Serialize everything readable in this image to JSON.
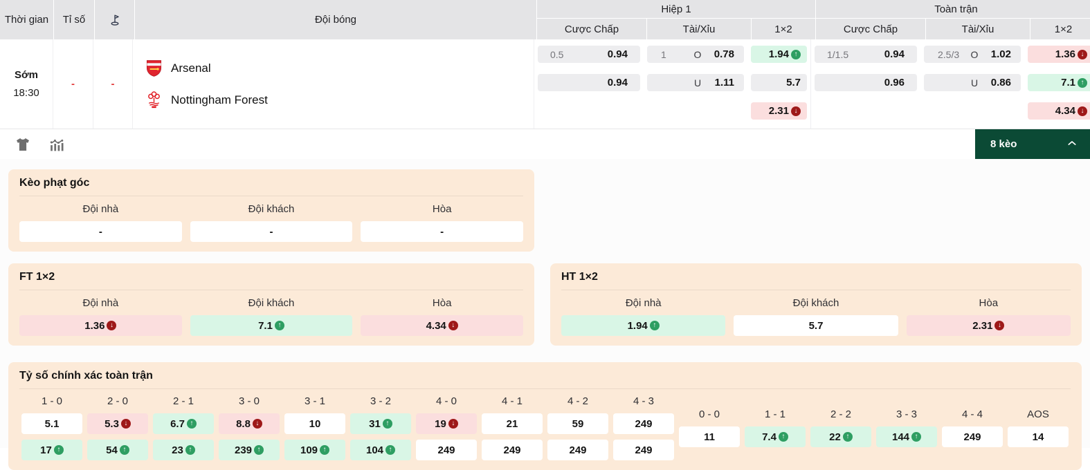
{
  "table": {
    "header": {
      "time": "Thời gian",
      "score": "Tỉ số",
      "team": "Đội bóng",
      "half1": "Hiệp 1",
      "fulltime": "Toàn trận",
      "handicap": "Cược Chấp",
      "over_under": "Tài/Xỉu",
      "one_x_two": "1×2"
    },
    "match": {
      "time_label": "Sớm",
      "time": "18:30",
      "score": "-",
      "corners": "-",
      "home_team": "Arsenal",
      "away_team": "Nottingham Forest",
      "h1": {
        "hcap_line": "0.5",
        "hcap_home": "0.94",
        "hcap_away": "0.94",
        "ou_line": "1",
        "over_label": "O",
        "over": "0.78",
        "under_label": "U",
        "under": "1.11",
        "one": {
          "v": "1.94",
          "t": "up",
          "bg": "green"
        },
        "two": {
          "v": "5.7",
          "t": "",
          "bg": "gray"
        },
        "draw": {
          "v": "2.31",
          "t": "down",
          "bg": "pink"
        }
      },
      "ft": {
        "hcap_line": "1/1.5",
        "hcap_home": "0.94",
        "hcap_away": "0.96",
        "ou_line": "2.5/3",
        "over_label": "O",
        "over": "1.02",
        "under_label": "U",
        "under": "0.86",
        "one": {
          "v": "1.36",
          "t": "down",
          "bg": "pink"
        },
        "two": {
          "v": "7.1",
          "t": "up",
          "bg": "green"
        },
        "draw": {
          "v": "4.34",
          "t": "down",
          "bg": "pink"
        }
      }
    }
  },
  "toolbar": {
    "bets_button": "8 kèo"
  },
  "colors": {
    "accent_green_dark": "#0b4a35",
    "cell_green": "#d9f6e6",
    "cell_pink": "#fbdede",
    "panel_peach": "#fcead8",
    "arrow_up": "#2e9e62",
    "arrow_down": "#9e1919"
  },
  "panels": {
    "corner": {
      "title": "Kèo phạt góc",
      "columns": [
        {
          "label": "Đội nhà",
          "cell": {
            "v": "-",
            "t": "",
            "bg": "white"
          }
        },
        {
          "label": "Đội khách",
          "cell": {
            "v": "-",
            "t": "",
            "bg": "white"
          }
        },
        {
          "label": "Hòa",
          "cell": {
            "v": "-",
            "t": "",
            "bg": "white"
          }
        }
      ]
    },
    "ft1x2": {
      "title": "FT 1×2",
      "columns": [
        {
          "label": "Đội nhà",
          "cell": {
            "v": "1.36",
            "t": "down",
            "bg": "pink"
          }
        },
        {
          "label": "Đội khách",
          "cell": {
            "v": "7.1",
            "t": "up",
            "bg": "green"
          }
        },
        {
          "label": "Hòa",
          "cell": {
            "v": "4.34",
            "t": "down",
            "bg": "pink"
          }
        }
      ]
    },
    "ht1x2": {
      "title": "HT 1×2",
      "columns": [
        {
          "label": "Đội nhà",
          "cell": {
            "v": "1.94",
            "t": "up",
            "bg": "green"
          }
        },
        {
          "label": "Đội khách",
          "cell": {
            "v": "5.7",
            "t": "",
            "bg": "white"
          }
        },
        {
          "label": "Hòa",
          "cell": {
            "v": "2.31",
            "t": "down",
            "bg": "pink"
          }
        }
      ]
    },
    "correct_score": {
      "title": "Tỷ số chính xác toàn trận",
      "main": [
        {
          "score": "1 - 0",
          "home": {
            "v": "5.1",
            "t": "",
            "bg": "white"
          },
          "away": {
            "v": "17",
            "t": "up",
            "bg": "green"
          }
        },
        {
          "score": "2 - 0",
          "home": {
            "v": "5.3",
            "t": "down",
            "bg": "pink"
          },
          "away": {
            "v": "54",
            "t": "up",
            "bg": "green"
          }
        },
        {
          "score": "2 - 1",
          "home": {
            "v": "6.7",
            "t": "up",
            "bg": "green"
          },
          "away": {
            "v": "23",
            "t": "up",
            "bg": "green"
          }
        },
        {
          "score": "3 - 0",
          "home": {
            "v": "8.8",
            "t": "down",
            "bg": "pink"
          },
          "away": {
            "v": "239",
            "t": "up",
            "bg": "green"
          }
        },
        {
          "score": "3 - 1",
          "home": {
            "v": "10",
            "t": "",
            "bg": "white"
          },
          "away": {
            "v": "109",
            "t": "up",
            "bg": "green"
          }
        },
        {
          "score": "3 - 2",
          "home": {
            "v": "31",
            "t": "up",
            "bg": "green"
          },
          "away": {
            "v": "104",
            "t": "up",
            "bg": "green"
          }
        },
        {
          "score": "4 - 0",
          "home": {
            "v": "19",
            "t": "down",
            "bg": "pink"
          },
          "away": {
            "v": "249",
            "t": "",
            "bg": "white"
          }
        },
        {
          "score": "4 - 1",
          "home": {
            "v": "21",
            "t": "",
            "bg": "white"
          },
          "away": {
            "v": "249",
            "t": "",
            "bg": "white"
          }
        },
        {
          "score": "4 - 2",
          "home": {
            "v": "59",
            "t": "",
            "bg": "white"
          },
          "away": {
            "v": "249",
            "t": "",
            "bg": "white"
          }
        },
        {
          "score": "4 - 3",
          "home": {
            "v": "249",
            "t": "",
            "bg": "white"
          },
          "away": {
            "v": "249",
            "t": "",
            "bg": "white"
          }
        }
      ],
      "draw": [
        {
          "score": "0 - 0",
          "cell": {
            "v": "11",
            "t": "",
            "bg": "white"
          }
        },
        {
          "score": "1 - 1",
          "cell": {
            "v": "7.4",
            "t": "up",
            "bg": "green"
          }
        },
        {
          "score": "2 - 2",
          "cell": {
            "v": "22",
            "t": "up",
            "bg": "green"
          }
        },
        {
          "score": "3 - 3",
          "cell": {
            "v": "144",
            "t": "up",
            "bg": "green"
          }
        },
        {
          "score": "4 - 4",
          "cell": {
            "v": "249",
            "t": "",
            "bg": "white"
          }
        },
        {
          "score": "AOS",
          "cell": {
            "v": "14",
            "t": "",
            "bg": "white"
          }
        }
      ]
    }
  }
}
